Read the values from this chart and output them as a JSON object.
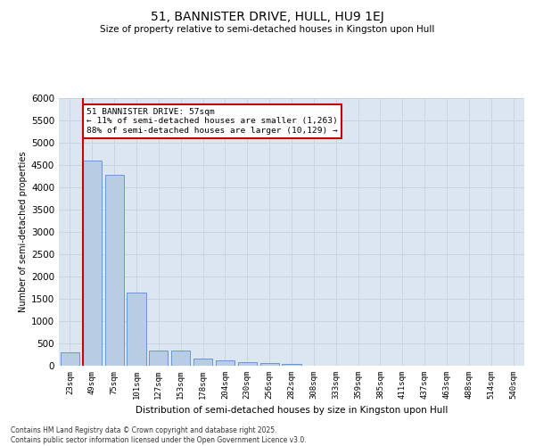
{
  "title": "51, BANNISTER DRIVE, HULL, HU9 1EJ",
  "subtitle": "Size of property relative to semi-detached houses in Kingston upon Hull",
  "xlabel": "Distribution of semi-detached houses by size in Kingston upon Hull",
  "ylabel": "Number of semi-detached properties",
  "footnote": "Contains HM Land Registry data © Crown copyright and database right 2025.\nContains public sector information licensed under the Open Government Licence v3.0.",
  "categories": [
    "23sqm",
    "49sqm",
    "75sqm",
    "101sqm",
    "127sqm",
    "153sqm",
    "178sqm",
    "204sqm",
    "230sqm",
    "256sqm",
    "282sqm",
    "308sqm",
    "333sqm",
    "359sqm",
    "385sqm",
    "411sqm",
    "437sqm",
    "463sqm",
    "488sqm",
    "514sqm",
    "540sqm"
  ],
  "values": [
    310,
    4600,
    4280,
    1650,
    350,
    340,
    170,
    130,
    90,
    55,
    45,
    8,
    0,
    0,
    0,
    0,
    0,
    0,
    0,
    0,
    0
  ],
  "bar_color": "#b8cce4",
  "bar_edge_color": "#5b8dc8",
  "grid_color": "#c8d4e4",
  "background_color": "#dce6f0",
  "property_line_color": "#cc0000",
  "annotation_text": "51 BANNISTER DRIVE: 57sqm\n← 11% of semi-detached houses are smaller (1,263)\n88% of semi-detached houses are larger (10,129) →",
  "annotation_box_color": "#cc0000",
  "ylim": [
    0,
    6000
  ],
  "yticks": [
    0,
    500,
    1000,
    1500,
    2000,
    2500,
    3000,
    3500,
    4000,
    4500,
    5000,
    5500,
    6000
  ]
}
